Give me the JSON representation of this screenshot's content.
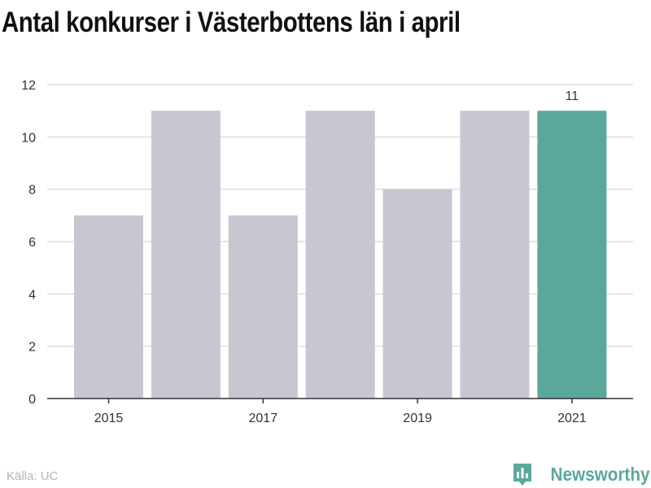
{
  "title": "Antal konkurser i Västerbottens län i april",
  "source": "Källa: UC",
  "brand": {
    "name": "Newsworthy",
    "color": "#5aa89b",
    "icon": "bar-chart-badge-icon"
  },
  "colors": {
    "bar": "#c8c6d1",
    "highlight": "#5aa89b",
    "grid": "#dedede",
    "axis": "#333333",
    "text": "#333333"
  },
  "chart_data": {
    "type": "bar",
    "categories": [
      "2015",
      "2016",
      "2017",
      "2018",
      "2019",
      "2020",
      "2021"
    ],
    "values": [
      7,
      11,
      7,
      11,
      8,
      11,
      11
    ],
    "highlight_index": 6,
    "data_labels": [
      {
        "index": 6,
        "text": "11"
      }
    ],
    "x_tick_labels": [
      "2015",
      "2017",
      "2019",
      "2021"
    ],
    "y_ticks": [
      0,
      2,
      4,
      6,
      8,
      10,
      12
    ],
    "ylim": [
      0,
      12
    ],
    "xlabel": "",
    "ylabel": "",
    "grid": true,
    "legend": "none"
  }
}
